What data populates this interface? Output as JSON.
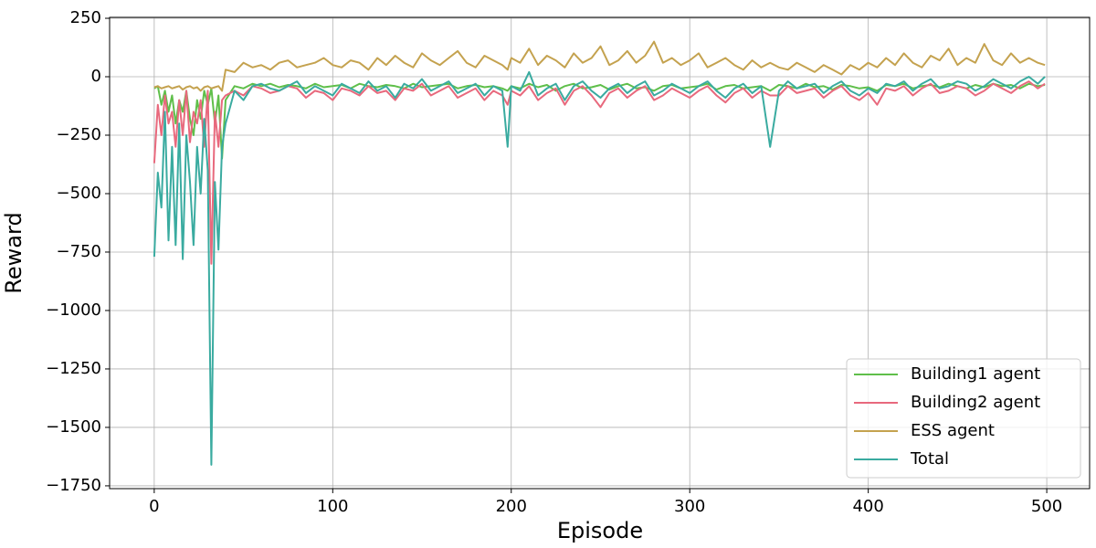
{
  "chart_data": {
    "type": "line",
    "xlabel": "Episode",
    "ylabel": "Reward",
    "x": [
      0,
      2,
      4,
      6,
      8,
      10,
      12,
      14,
      16,
      18,
      20,
      22,
      24,
      26,
      28,
      30,
      32,
      34,
      36,
      38,
      40,
      45,
      50,
      55,
      60,
      65,
      70,
      75,
      80,
      85,
      90,
      95,
      100,
      105,
      110,
      115,
      120,
      125,
      130,
      135,
      140,
      145,
      150,
      155,
      160,
      165,
      170,
      175,
      180,
      185,
      190,
      195,
      198,
      200,
      205,
      210,
      215,
      220,
      225,
      230,
      235,
      240,
      245,
      250,
      255,
      260,
      265,
      270,
      275,
      280,
      285,
      290,
      295,
      300,
      305,
      310,
      315,
      320,
      325,
      330,
      335,
      340,
      345,
      350,
      355,
      360,
      365,
      370,
      375,
      380,
      385,
      390,
      395,
      400,
      405,
      410,
      415,
      420,
      425,
      430,
      435,
      440,
      445,
      450,
      455,
      460,
      465,
      470,
      475,
      480,
      485,
      490,
      495,
      499
    ],
    "series": [
      {
        "name": "Building1 agent",
        "color": "#5fbf4a",
        "values": [
          -50,
          -40,
          -120,
          -60,
          -150,
          -80,
          -200,
          -100,
          -150,
          -60,
          -180,
          -250,
          -100,
          -180,
          -60,
          -120,
          -50,
          -200,
          -80,
          -350,
          -100,
          -40,
          -50,
          -30,
          -40,
          -30,
          -45,
          -35,
          -40,
          -50,
          -30,
          -45,
          -40,
          -35,
          -50,
          -30,
          -40,
          -45,
          -35,
          -40,
          -50,
          -30,
          -45,
          -40,
          -35,
          -30,
          -50,
          -40,
          -35,
          -45,
          -40,
          -50,
          -60,
          -40,
          -50,
          -30,
          -45,
          -35,
          -60,
          -40,
          -30,
          -50,
          -45,
          -35,
          -55,
          -40,
          -30,
          -50,
          -45,
          -60,
          -40,
          -35,
          -50,
          -45,
          -40,
          -30,
          -55,
          -40,
          -35,
          -50,
          -45,
          -40,
          -60,
          -35,
          -40,
          -50,
          -30,
          -45,
          -40,
          -55,
          -35,
          -40,
          -50,
          -45,
          -60,
          -35,
          -40,
          -30,
          -50,
          -40,
          -35,
          -45,
          -30,
          -40,
          -50,
          -35,
          -45,
          -30,
          -40,
          -35,
          -50,
          -30,
          -40,
          -35
        ]
      },
      {
        "name": "Building2 agent",
        "color": "#e8697d",
        "values": [
          -370,
          -120,
          -250,
          -80,
          -200,
          -150,
          -300,
          -100,
          -250,
          -60,
          -280,
          -150,
          -200,
          -100,
          -300,
          -60,
          -800,
          -150,
          -300,
          -100,
          -80,
          -60,
          -80,
          -40,
          -50,
          -70,
          -60,
          -40,
          -50,
          -90,
          -60,
          -70,
          -100,
          -50,
          -60,
          -80,
          -40,
          -70,
          -60,
          -100,
          -50,
          -60,
          -30,
          -80,
          -60,
          -40,
          -90,
          -70,
          -50,
          -100,
          -60,
          -80,
          -120,
          -60,
          -80,
          -40,
          -100,
          -70,
          -50,
          -120,
          -60,
          -40,
          -80,
          -130,
          -70,
          -50,
          -90,
          -60,
          -40,
          -100,
          -80,
          -50,
          -70,
          -90,
          -60,
          -40,
          -80,
          -110,
          -70,
          -50,
          -90,
          -60,
          -80,
          -80,
          -40,
          -70,
          -60,
          -50,
          -90,
          -60,
          -40,
          -80,
          -100,
          -70,
          -120,
          -50,
          -60,
          -40,
          -80,
          -50,
          -30,
          -70,
          -60,
          -40,
          -50,
          -80,
          -60,
          -30,
          -50,
          -70,
          -40,
          -20,
          -50,
          -30
        ]
      },
      {
        "name": "ESS agent",
        "color": "#c4a24f",
        "values": [
          -45,
          -40,
          -50,
          -45,
          -40,
          -50,
          -45,
          -40,
          -55,
          -45,
          -40,
          -50,
          -45,
          -60,
          -45,
          -40,
          -50,
          -45,
          -40,
          -60,
          30,
          20,
          60,
          40,
          50,
          30,
          60,
          70,
          40,
          50,
          60,
          80,
          50,
          40,
          70,
          60,
          30,
          80,
          50,
          90,
          60,
          40,
          100,
          70,
          50,
          80,
          110,
          60,
          40,
          90,
          70,
          50,
          30,
          80,
          60,
          120,
          50,
          90,
          70,
          40,
          100,
          60,
          80,
          130,
          50,
          70,
          110,
          60,
          90,
          150,
          60,
          80,
          50,
          70,
          100,
          40,
          60,
          80,
          50,
          30,
          70,
          40,
          60,
          40,
          30,
          60,
          40,
          20,
          50,
          30,
          10,
          50,
          30,
          60,
          40,
          80,
          50,
          100,
          60,
          40,
          90,
          70,
          120,
          50,
          80,
          60,
          140,
          70,
          50,
          100,
          60,
          80,
          60,
          50
        ]
      },
      {
        "name": "Total",
        "color": "#3aaba0",
        "values": [
          -770,
          -410,
          -560,
          -150,
          -700,
          -300,
          -720,
          -200,
          -780,
          -250,
          -450,
          -720,
          -300,
          -500,
          -180,
          -400,
          -1660,
          -450,
          -740,
          -300,
          -200,
          -60,
          -100,
          -40,
          -30,
          -50,
          -60,
          -40,
          -20,
          -70,
          -40,
          -60,
          -80,
          -30,
          -50,
          -70,
          -20,
          -60,
          -40,
          -90,
          -30,
          -50,
          -10,
          -60,
          -40,
          -20,
          -70,
          -50,
          -30,
          -80,
          -40,
          -60,
          -300,
          -40,
          -60,
          20,
          -80,
          -50,
          -30,
          -100,
          -40,
          -20,
          -60,
          -90,
          -50,
          -30,
          -70,
          -40,
          -20,
          -80,
          -60,
          -30,
          -50,
          -70,
          -40,
          -20,
          -60,
          -90,
          -50,
          -30,
          -70,
          -40,
          -300,
          -60,
          -20,
          -50,
          -40,
          -30,
          -70,
          -40,
          -20,
          -60,
          -80,
          -50,
          -70,
          -30,
          -40,
          -20,
          -60,
          -30,
          -10,
          -50,
          -40,
          -20,
          -30,
          -60,
          -40,
          -10,
          -30,
          -50,
          -20,
          0,
          -30,
          0
        ]
      }
    ],
    "xlim": [
      -25,
      524
    ],
    "xticks": [
      0,
      100,
      200,
      300,
      400,
      500
    ],
    "ylim": [
      -1762,
      254
    ],
    "yticks": [
      250,
      0,
      {
        "value": -250,
        "label": "−250"
      },
      {
        "value": -500,
        "label": "−500"
      },
      {
        "value": -750,
        "label": "−750"
      },
      {
        "value": -1000,
        "label": "−1000"
      },
      {
        "value": -1250,
        "label": "−1250"
      },
      {
        "value": -1500,
        "label": "−1500"
      },
      {
        "value": -1750,
        "label": "−1750"
      }
    ],
    "grid": true,
    "legend": "lower right"
  }
}
